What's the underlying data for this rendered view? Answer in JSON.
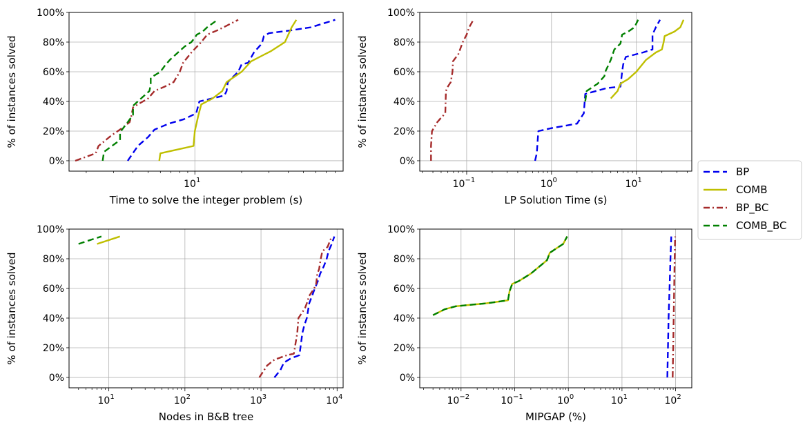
{
  "chart_data": [
    {
      "type": "line",
      "title": "",
      "xlabel": "Time to solve the integer problem (s)",
      "ylabel": "% of instances solved",
      "xscale": "log",
      "xlim": [
        1.55,
        90
      ],
      "ylim": [
        -0.07,
        1.0
      ],
      "xtick_labels": [
        {
          "exp": "1",
          "value": 10
        }
      ],
      "ytick_labels": [
        "0%",
        "20%",
        "40%",
        "60%",
        "80%",
        "100%"
      ],
      "grid": true,
      "series": [
        {
          "name": "BP",
          "points": [
            [
              3.7,
              0
            ],
            [
              4.3,
              0.1
            ],
            [
              5.0,
              0.16
            ],
            [
              5.5,
              0.21
            ],
            [
              6.8,
              0.25
            ],
            [
              8.5,
              0.28
            ],
            [
              10.2,
              0.32
            ],
            [
              10.7,
              0.4
            ],
            [
              15.5,
              0.44
            ],
            [
              16,
              0.47
            ],
            [
              16.3,
              0.53
            ],
            [
              19,
              0.6
            ],
            [
              20,
              0.65
            ],
            [
              22,
              0.66
            ],
            [
              24,
              0.73
            ],
            [
              27,
              0.79
            ],
            [
              27.8,
              0.84
            ],
            [
              30,
              0.86
            ],
            [
              42,
              0.88
            ],
            [
              56,
              0.9
            ],
            [
              80,
              0.95
            ]
          ]
        },
        {
          "name": "COMB",
          "points": [
            [
              5.9,
              0
            ],
            [
              6.0,
              0.05
            ],
            [
              9.8,
              0.1
            ],
            [
              10,
              0.2
            ],
            [
              10.5,
              0.3
            ],
            [
              11,
              0.38
            ],
            [
              13,
              0.42
            ],
            [
              15,
              0.47
            ],
            [
              16,
              0.53
            ],
            [
              20,
              0.6
            ],
            [
              23,
              0.67
            ],
            [
              31,
              0.74
            ],
            [
              38,
              0.8
            ],
            [
              42,
              0.9
            ],
            [
              45,
              0.95
            ]
          ]
        },
        {
          "name": "BP_BC",
          "points": [
            [
              1.7,
              0
            ],
            [
              2.3,
              0.05
            ],
            [
              2.4,
              0.1
            ],
            [
              2.9,
              0.17
            ],
            [
              3.4,
              0.22
            ],
            [
              3.8,
              0.26
            ],
            [
              3.9,
              0.3
            ],
            [
              4.0,
              0.36
            ],
            [
              4.3,
              0.38
            ],
            [
              5.0,
              0.42
            ],
            [
              5.5,
              0.47
            ],
            [
              6.4,
              0.5
            ],
            [
              7.3,
              0.53
            ],
            [
              8,
              0.6
            ],
            [
              8.4,
              0.66
            ],
            [
              9.5,
              0.73
            ],
            [
              11,
              0.8
            ],
            [
              12,
              0.85
            ],
            [
              14,
              0.88
            ],
            [
              16,
              0.91
            ],
            [
              19,
              0.95
            ]
          ]
        },
        {
          "name": "COMB_BC",
          "points": [
            [
              2.55,
              0
            ],
            [
              2.6,
              0.06
            ],
            [
              3.3,
              0.14
            ],
            [
              3.3,
              0.19
            ],
            [
              3.4,
              0.21
            ],
            [
              3.7,
              0.26
            ],
            [
              4.0,
              0.31
            ],
            [
              4.0,
              0.37
            ],
            [
              4.4,
              0.41
            ],
            [
              5.1,
              0.47
            ],
            [
              5.2,
              0.51
            ],
            [
              5.2,
              0.56
            ],
            [
              6.0,
              0.6
            ],
            [
              6.4,
              0.64
            ],
            [
              6.9,
              0.68
            ],
            [
              7.6,
              0.72
            ],
            [
              8.6,
              0.77
            ],
            [
              9.5,
              0.8
            ],
            [
              10,
              0.83
            ],
            [
              10.3,
              0.85
            ],
            [
              11.2,
              0.87
            ],
            [
              12,
              0.9
            ],
            [
              14,
              0.95
            ]
          ]
        }
      ]
    },
    {
      "type": "line",
      "title": "",
      "xlabel": "LP Solution Time (s)",
      "ylabel": "% of instances solved",
      "xscale": "log",
      "xlim": [
        0.028,
        45
      ],
      "ylim": [
        -0.07,
        1.0
      ],
      "xtick_labels": [
        {
          "exp": "−1",
          "value": 0.1
        },
        {
          "exp": "0",
          "value": 1
        },
        {
          "exp": "1",
          "value": 10
        }
      ],
      "ytick_labels": [
        "0%",
        "20%",
        "40%",
        "60%",
        "80%",
        "100%"
      ],
      "grid": true,
      "series": [
        {
          "name": "BP",
          "points": [
            [
              0.64,
              0
            ],
            [
              0.67,
              0.05
            ],
            [
              0.69,
              0.15
            ],
            [
              0.7,
              0.2
            ],
            [
              1.0,
              0.22
            ],
            [
              2.0,
              0.25
            ],
            [
              2.4,
              0.32
            ],
            [
              2.5,
              0.45
            ],
            [
              4.5,
              0.49
            ],
            [
              6.5,
              0.5
            ],
            [
              6.8,
              0.6
            ],
            [
              7.0,
              0.65
            ],
            [
              7.5,
              0.7
            ],
            [
              12,
              0.73
            ],
            [
              15.5,
              0.75
            ],
            [
              15.5,
              0.85
            ],
            [
              17,
              0.9
            ],
            [
              19,
              0.95
            ]
          ]
        },
        {
          "name": "COMB",
          "points": [
            [
              5.0,
              0.42
            ],
            [
              6.0,
              0.47
            ],
            [
              6.5,
              0.52
            ],
            [
              8.0,
              0.55
            ],
            [
              10,
              0.6
            ],
            [
              13,
              0.68
            ],
            [
              17,
              0.73
            ],
            [
              20,
              0.75
            ],
            [
              21,
              0.8
            ],
            [
              21.5,
              0.84
            ],
            [
              28,
              0.87
            ],
            [
              33,
              0.9
            ],
            [
              36,
              0.95
            ]
          ]
        },
        {
          "name": "BP_BC",
          "points": [
            [
              0.038,
              0
            ],
            [
              0.038,
              0.1
            ],
            [
              0.039,
              0.2
            ],
            [
              0.045,
              0.26
            ],
            [
              0.05,
              0.29
            ],
            [
              0.056,
              0.32
            ],
            [
              0.057,
              0.47
            ],
            [
              0.06,
              0.5
            ],
            [
              0.065,
              0.53
            ],
            [
              0.068,
              0.6
            ],
            [
              0.069,
              0.67
            ],
            [
              0.08,
              0.72
            ],
            [
              0.09,
              0.8
            ],
            [
              0.1,
              0.85
            ],
            [
              0.107,
              0.9
            ],
            [
              0.12,
              0.95
            ]
          ]
        },
        {
          "name": "COMB_BC",
          "points": [
            [
              2.5,
              0.4
            ],
            [
              2.6,
              0.47
            ],
            [
              3.5,
              0.52
            ],
            [
              4.2,
              0.57
            ],
            [
              4.3,
              0.6
            ],
            [
              5.0,
              0.68
            ],
            [
              5.5,
              0.75
            ],
            [
              6.5,
              0.79
            ],
            [
              6.8,
              0.85
            ],
            [
              8.0,
              0.87
            ],
            [
              9.5,
              0.9
            ],
            [
              10.5,
              0.95
            ]
          ]
        }
      ]
    },
    {
      "type": "line",
      "title": "",
      "xlabel": "Nodes in B&B tree",
      "ylabel": "% of instances solved",
      "xscale": "log",
      "xlim": [
        3,
        12000
      ],
      "ylim": [
        -0.07,
        1.0
      ],
      "xtick_labels": [
        {
          "exp": "1",
          "value": 10
        },
        {
          "exp": "2",
          "value": 100
        },
        {
          "exp": "3",
          "value": 1000
        },
        {
          "exp": "4",
          "value": 10000
        }
      ],
      "ytick_labels": [
        "0%",
        "20%",
        "40%",
        "60%",
        "80%",
        "100%"
      ],
      "grid": true,
      "series": [
        {
          "name": "BP",
          "points": [
            [
              1500,
              0
            ],
            [
              1800,
              0.05
            ],
            [
              2000,
              0.1
            ],
            [
              2500,
              0.13
            ],
            [
              3200,
              0.15
            ],
            [
              3400,
              0.25
            ],
            [
              3500,
              0.3
            ],
            [
              3700,
              0.35
            ],
            [
              4000,
              0.4
            ],
            [
              4300,
              0.5
            ],
            [
              4700,
              0.55
            ],
            [
              5100,
              0.6
            ],
            [
              5600,
              0.65
            ],
            [
              6000,
              0.7
            ],
            [
              6700,
              0.75
            ],
            [
              7300,
              0.8
            ],
            [
              7700,
              0.85
            ],
            [
              8500,
              0.9
            ],
            [
              9200,
              0.95
            ]
          ]
        },
        {
          "name": "COMB",
          "points": [
            [
              7,
              0.9
            ],
            [
              14,
              0.95
            ]
          ]
        },
        {
          "name": "BP_BC",
          "points": [
            [
              950,
              0
            ],
            [
              1200,
              0.08
            ],
            [
              1500,
              0.12
            ],
            [
              2200,
              0.15
            ],
            [
              2700,
              0.16
            ],
            [
              3000,
              0.3
            ],
            [
              3100,
              0.4
            ],
            [
              3500,
              0.44
            ],
            [
              3800,
              0.47
            ],
            [
              4000,
              0.5
            ],
            [
              4300,
              0.55
            ],
            [
              5000,
              0.6
            ],
            [
              5300,
              0.63
            ],
            [
              5500,
              0.7
            ],
            [
              5800,
              0.73
            ],
            [
              6100,
              0.8
            ],
            [
              6400,
              0.85
            ],
            [
              7500,
              0.88
            ],
            [
              8500,
              0.95
            ]
          ]
        },
        {
          "name": "COMB_BC",
          "points": [
            [
              4,
              0.9
            ],
            [
              6,
              0.93
            ],
            [
              8,
              0.95
            ]
          ]
        }
      ]
    },
    {
      "type": "line",
      "title": "",
      "xlabel": "MIPGAP (%)",
      "ylabel": "% of instances solved",
      "xscale": "log",
      "xlim": [
        0.0017,
        200
      ],
      "ylim": [
        -0.07,
        1.0
      ],
      "xtick_labels": [
        {
          "exp": "−2",
          "value": 0.01
        },
        {
          "exp": "−1",
          "value": 0.1
        },
        {
          "exp": "0",
          "value": 1
        },
        {
          "exp": "1",
          "value": 10
        },
        {
          "exp": "2",
          "value": 100
        }
      ],
      "ytick_labels": [
        "0%",
        "20%",
        "40%",
        "60%",
        "80%",
        "100%"
      ],
      "grid": true,
      "series": [
        {
          "name": "BP",
          "points": [
            [
              70,
              0
            ],
            [
              72,
              0.2
            ],
            [
              74,
              0.4
            ],
            [
              77,
              0.6
            ],
            [
              80,
              0.8
            ],
            [
              83,
              0.95
            ]
          ]
        },
        {
          "name": "COMB",
          "points": [
            [
              0.003,
              0.42
            ],
            [
              0.005,
              0.46
            ],
            [
              0.008,
              0.48
            ],
            [
              0.03,
              0.5
            ],
            [
              0.075,
              0.52
            ],
            [
              0.08,
              0.58
            ],
            [
              0.09,
              0.63
            ],
            [
              0.12,
              0.65
            ],
            [
              0.2,
              0.7
            ],
            [
              0.4,
              0.79
            ],
            [
              0.45,
              0.84
            ],
            [
              0.6,
              0.87
            ],
            [
              0.8,
              0.9
            ],
            [
              0.95,
              0.95
            ]
          ]
        },
        {
          "name": "BP_BC",
          "points": [
            [
              88,
              0
            ],
            [
              90,
              0.2
            ],
            [
              92,
              0.4
            ],
            [
              94,
              0.6
            ],
            [
              96,
              0.8
            ],
            [
              98,
              0.95
            ]
          ]
        },
        {
          "name": "COMB_BC",
          "points": [
            [
              0.003,
              0.42
            ],
            [
              0.005,
              0.46
            ],
            [
              0.008,
              0.48
            ],
            [
              0.03,
              0.5
            ],
            [
              0.075,
              0.52
            ],
            [
              0.08,
              0.58
            ],
            [
              0.09,
              0.63
            ],
            [
              0.12,
              0.65
            ],
            [
              0.2,
              0.7
            ],
            [
              0.4,
              0.79
            ],
            [
              0.45,
              0.84
            ],
            [
              0.6,
              0.87
            ],
            [
              0.8,
              0.9
            ],
            [
              0.95,
              0.95
            ]
          ]
        }
      ]
    }
  ],
  "legend": {
    "placement": "right",
    "entries": [
      {
        "name": "BP",
        "color": "#0000ee",
        "dash": "dashed"
      },
      {
        "name": "COMB",
        "color": "#bfbf00",
        "dash": "solid"
      },
      {
        "name": "BP_BC",
        "color": "#a52a2a",
        "dash": "dashdot"
      },
      {
        "name": "COMB_BC",
        "color": "#008000",
        "dash": "dashed"
      }
    ]
  }
}
